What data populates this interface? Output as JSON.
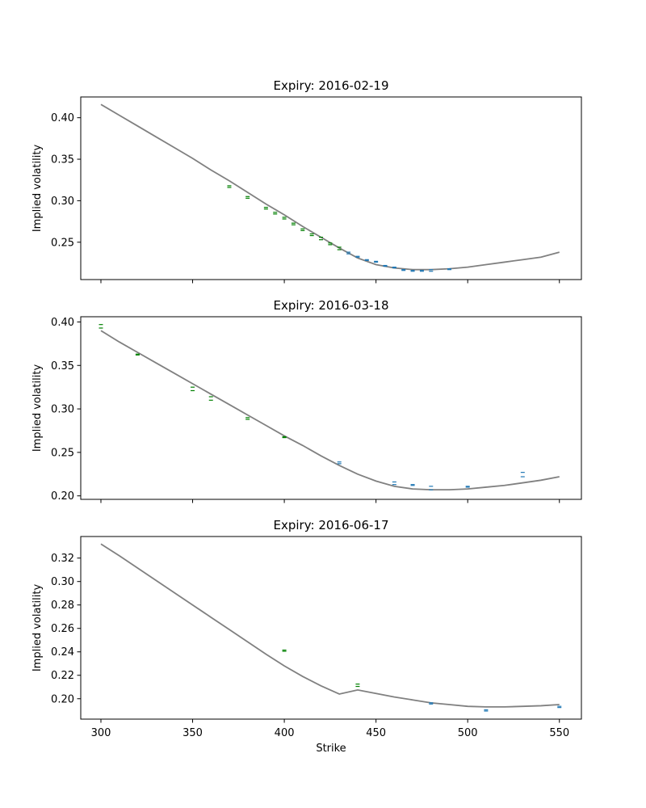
{
  "figure": {
    "xlabel": "Strike",
    "ylabel": "Implied volatility"
  },
  "colors": {
    "fit_line": "#808080",
    "otm_puts": "#008000",
    "otm_calls": "#1f77b4",
    "axes": "#000000"
  },
  "chart_data": [
    {
      "type": "line",
      "title": "Expiry: 2016-02-19",
      "xlabel": "",
      "ylabel": "Implied volatility",
      "xlim": [
        289,
        562
      ],
      "ylim": [
        0.205,
        0.425
      ],
      "xticks": [
        300,
        350,
        400,
        450,
        500,
        550
      ],
      "show_xtick_labels": false,
      "yticks": [
        0.25,
        0.3,
        0.35,
        0.4
      ],
      "ytick_labels": [
        "0.25",
        "0.30",
        "0.35",
        "0.40"
      ],
      "grid": false,
      "fit_curve": {
        "x": [
          300,
          310,
          320,
          330,
          340,
          350,
          360,
          370,
          380,
          390,
          400,
          410,
          420,
          430,
          440,
          450,
          460,
          470,
          480,
          490,
          500,
          510,
          520,
          530,
          540,
          550
        ],
        "y": [
          0.416,
          0.403,
          0.39,
          0.377,
          0.364,
          0.351,
          0.337,
          0.324,
          0.31,
          0.296,
          0.283,
          0.269,
          0.256,
          0.243,
          0.231,
          0.223,
          0.219,
          0.217,
          0.217,
          0.218,
          0.22,
          0.223,
          0.226,
          0.229,
          0.232,
          0.238
        ]
      },
      "quotes": [
        {
          "strike": 370,
          "bid": 0.316,
          "ask": 0.318,
          "side": "put"
        },
        {
          "strike": 380,
          "bid": 0.303,
          "ask": 0.305,
          "side": "put"
        },
        {
          "strike": 390,
          "bid": 0.29,
          "ask": 0.292,
          "side": "put"
        },
        {
          "strike": 395,
          "bid": 0.284,
          "ask": 0.286,
          "side": "put"
        },
        {
          "strike": 400,
          "bid": 0.278,
          "ask": 0.28,
          "side": "put"
        },
        {
          "strike": 405,
          "bid": 0.271,
          "ask": 0.273,
          "side": "put"
        },
        {
          "strike": 410,
          "bid": 0.264,
          "ask": 0.266,
          "side": "put"
        },
        {
          "strike": 415,
          "bid": 0.258,
          "ask": 0.26,
          "side": "put"
        },
        {
          "strike": 420,
          "bid": 0.253,
          "ask": 0.256,
          "side": "put"
        },
        {
          "strike": 425,
          "bid": 0.247,
          "ask": 0.249,
          "side": "put"
        },
        {
          "strike": 430,
          "bid": 0.241,
          "ask": 0.244,
          "side": "put"
        },
        {
          "strike": 435,
          "bid": 0.236,
          "ask": 0.238,
          "side": "call"
        },
        {
          "strike": 440,
          "bid": 0.232,
          "ask": 0.233,
          "side": "call"
        },
        {
          "strike": 445,
          "bid": 0.228,
          "ask": 0.229,
          "side": "call"
        },
        {
          "strike": 450,
          "bid": 0.226,
          "ask": 0.227,
          "side": "call"
        },
        {
          "strike": 455,
          "bid": 0.221,
          "ask": 0.222,
          "side": "call"
        },
        {
          "strike": 460,
          "bid": 0.219,
          "ask": 0.22,
          "side": "call"
        },
        {
          "strike": 465,
          "bid": 0.216,
          "ask": 0.217,
          "side": "call"
        },
        {
          "strike": 470,
          "bid": 0.215,
          "ask": 0.216,
          "side": "call"
        },
        {
          "strike": 475,
          "bid": 0.215,
          "ask": 0.216,
          "side": "call"
        },
        {
          "strike": 480,
          "bid": 0.215,
          "ask": 0.217,
          "side": "call"
        },
        {
          "strike": 490,
          "bid": 0.217,
          "ask": 0.218,
          "side": "call"
        }
      ]
    },
    {
      "type": "line",
      "title": "Expiry: 2016-03-18",
      "xlabel": "",
      "ylabel": "Implied volatility",
      "xlim": [
        289,
        562
      ],
      "ylim": [
        0.196,
        0.406
      ],
      "xticks": [
        300,
        350,
        400,
        450,
        500,
        550
      ],
      "show_xtick_labels": false,
      "yticks": [
        0.2,
        0.25,
        0.3,
        0.35,
        0.4
      ],
      "ytick_labels": [
        "0.20",
        "0.25",
        "0.30",
        "0.35",
        "0.40"
      ],
      "grid": false,
      "fit_curve": {
        "x": [
          300,
          310,
          320,
          330,
          340,
          350,
          360,
          370,
          380,
          390,
          400,
          410,
          420,
          430,
          440,
          450,
          460,
          470,
          480,
          490,
          500,
          510,
          520,
          530,
          540,
          550
        ],
        "y": [
          0.39,
          0.377,
          0.365,
          0.353,
          0.341,
          0.329,
          0.317,
          0.305,
          0.293,
          0.281,
          0.269,
          0.258,
          0.246,
          0.235,
          0.225,
          0.217,
          0.211,
          0.208,
          0.207,
          0.207,
          0.208,
          0.21,
          0.212,
          0.215,
          0.218,
          0.222
        ]
      },
      "quotes": [
        {
          "strike": 300,
          "bid": 0.393,
          "ask": 0.397,
          "side": "put"
        },
        {
          "strike": 320,
          "bid": 0.362,
          "ask": 0.363,
          "side": "put"
        },
        {
          "strike": 350,
          "bid": 0.321,
          "ask": 0.325,
          "side": "put"
        },
        {
          "strike": 360,
          "bid": 0.31,
          "ask": 0.314,
          "side": "put"
        },
        {
          "strike": 380,
          "bid": 0.288,
          "ask": 0.29,
          "side": "put"
        },
        {
          "strike": 400,
          "bid": 0.267,
          "ask": 0.268,
          "side": "put"
        },
        {
          "strike": 430,
          "bid": 0.237,
          "ask": 0.239,
          "side": "call"
        },
        {
          "strike": 460,
          "bid": 0.213,
          "ask": 0.216,
          "side": "call"
        },
        {
          "strike": 470,
          "bid": 0.212,
          "ask": 0.213,
          "side": "call"
        },
        {
          "strike": 480,
          "bid": 0.207,
          "ask": 0.211,
          "side": "call"
        },
        {
          "strike": 500,
          "bid": 0.21,
          "ask": 0.211,
          "side": "call"
        },
        {
          "strike": 530,
          "bid": 0.222,
          "ask": 0.227,
          "side": "call"
        }
      ]
    },
    {
      "type": "line",
      "title": "Expiry: 2016-06-17",
      "xlabel": "Strike",
      "ylabel": "Implied volatility",
      "xlim": [
        289,
        562
      ],
      "ylim": [
        0.1826,
        0.3384
      ],
      "xticks": [
        300,
        350,
        400,
        450,
        500,
        550
      ],
      "xtick_labels": [
        "300",
        "350",
        "400",
        "450",
        "500",
        "550"
      ],
      "show_xtick_labels": true,
      "yticks": [
        0.2,
        0.22,
        0.24,
        0.26,
        0.28,
        0.3,
        0.32
      ],
      "ytick_labels": [
        "0.20",
        "0.22",
        "0.24",
        "0.26",
        "0.28",
        "0.30",
        "0.32"
      ],
      "grid": false,
      "fit_curve": {
        "x": [
          300,
          310,
          320,
          330,
          340,
          350,
          360,
          370,
          380,
          390,
          400,
          410,
          420,
          430,
          440,
          450,
          460,
          470,
          480,
          490,
          500,
          510,
          520,
          530,
          540,
          550
        ],
        "y": [
          0.332,
          0.322,
          0.3115,
          0.301,
          0.2905,
          0.28,
          0.2695,
          0.259,
          0.2485,
          0.238,
          0.228,
          0.219,
          0.211,
          0.204,
          0.2075,
          0.2045,
          0.2015,
          0.199,
          0.1965,
          0.195,
          0.1935,
          0.193,
          0.193,
          0.1935,
          0.194,
          0.195
        ]
      },
      "quotes": [
        {
          "strike": 400,
          "bid": 0.2405,
          "ask": 0.2415,
          "side": "put"
        },
        {
          "strike": 440,
          "bid": 0.2105,
          "ask": 0.2125,
          "side": "put"
        },
        {
          "strike": 480,
          "bid": 0.1955,
          "ask": 0.1965,
          "side": "call"
        },
        {
          "strike": 510,
          "bid": 0.1895,
          "ask": 0.1905,
          "side": "call"
        },
        {
          "strike": 550,
          "bid": 0.1925,
          "ask": 0.1935,
          "side": "call"
        }
      ]
    }
  ]
}
